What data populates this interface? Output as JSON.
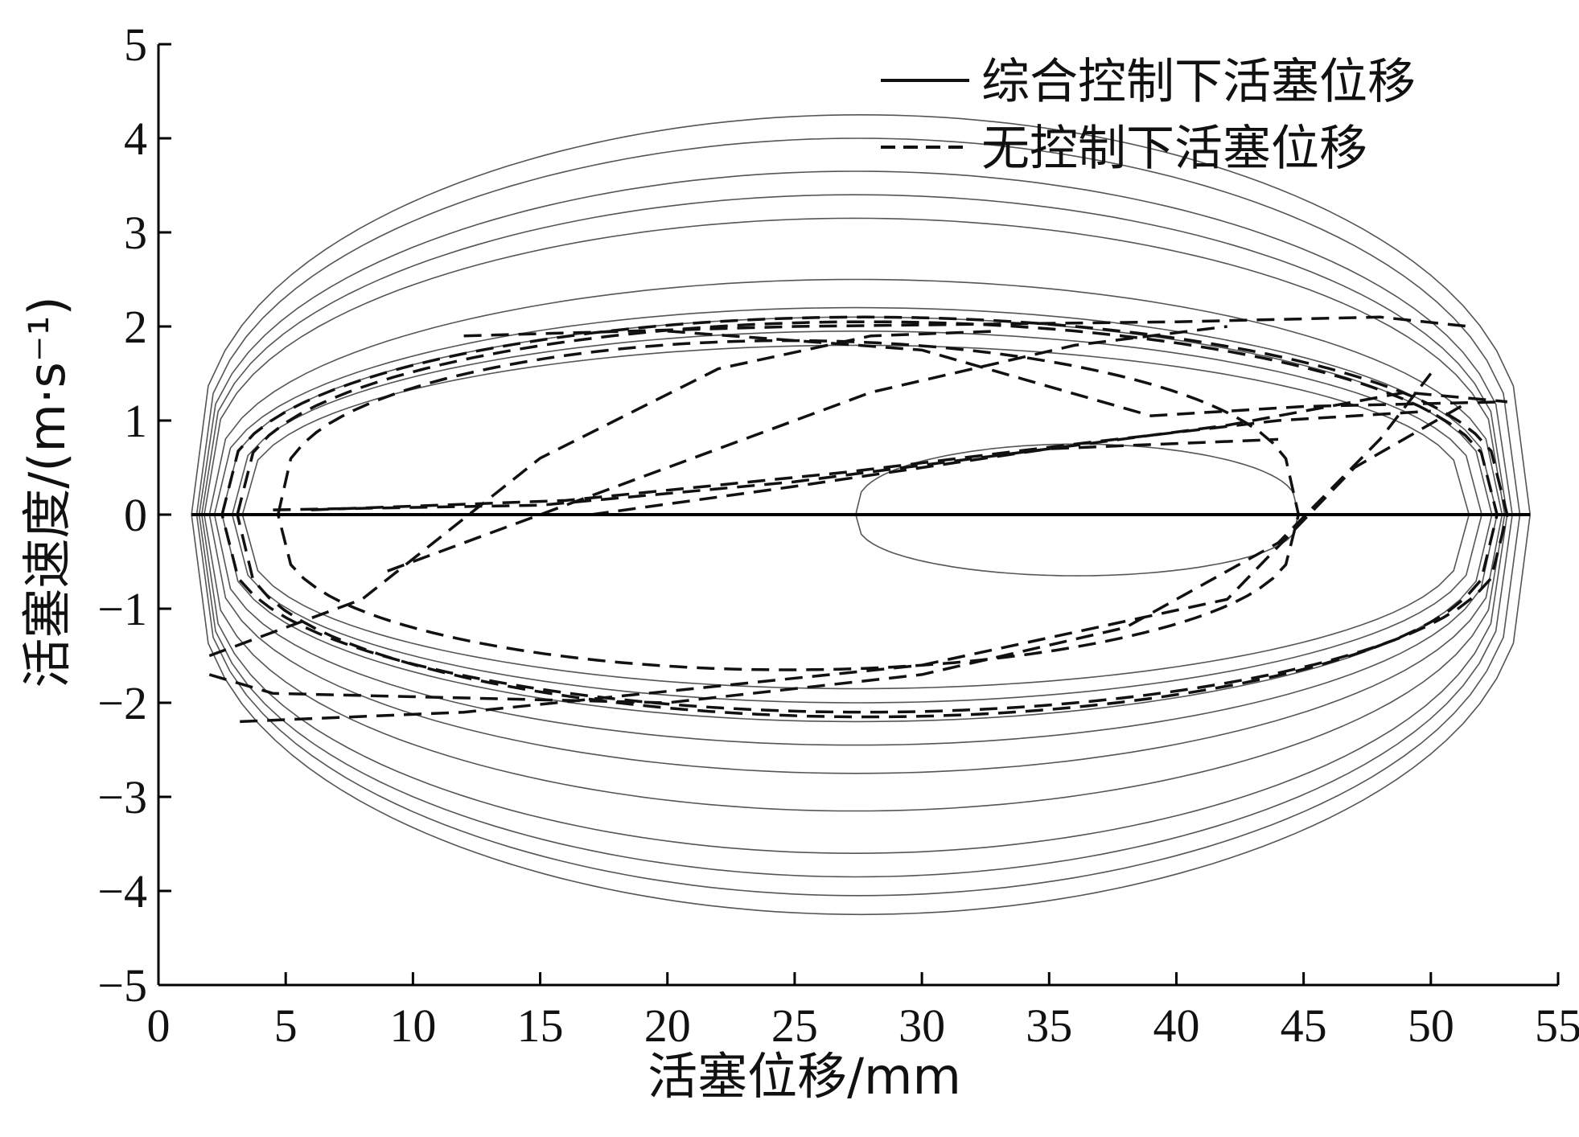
{
  "chart_data": {
    "type": "line",
    "title": "",
    "xlabel": "活塞位移/mm",
    "ylabel": "活塞速度/(m·s⁻¹)",
    "xlim": [
      0,
      55
    ],
    "ylim": [
      -5,
      5
    ],
    "xticks": [
      0,
      5,
      10,
      15,
      20,
      25,
      30,
      35,
      40,
      45,
      50,
      55
    ],
    "yticks": [
      -5,
      -4,
      -3,
      -2,
      -1,
      0,
      1,
      2,
      3,
      4,
      5
    ],
    "xtick_labels": [
      "0",
      "5",
      "10",
      "15",
      "20",
      "25",
      "30",
      "35",
      "40",
      "45",
      "50",
      "55"
    ],
    "ytick_labels": [
      "−5",
      "−4",
      "−3",
      "−2",
      "−1",
      "0",
      "1",
      "2",
      "3",
      "4",
      "5"
    ],
    "grid": false,
    "legend_position": "top-right",
    "series": [
      {
        "name": "综合控制下活塞位移",
        "style": "solid",
        "color": "#555555",
        "loops": [
          {
            "xmin": 1.3,
            "xmax": 53.9,
            "vmax": 4.25,
            "vmin": -4.25
          },
          {
            "xmin": 1.5,
            "xmax": 53.5,
            "vmax": 4.0,
            "vmin": -4.05
          },
          {
            "xmin": 1.6,
            "xmax": 53.2,
            "vmax": 3.65,
            "vmin": -3.85
          },
          {
            "xmin": 1.7,
            "xmax": 53.0,
            "vmax": 3.4,
            "vmin": -3.6
          },
          {
            "xmin": 1.8,
            "xmax": 52.9,
            "vmax": 3.15,
            "vmin": -3.15
          },
          {
            "xmin": 2.0,
            "xmax": 52.8,
            "vmax": 2.5,
            "vmin": -2.75
          },
          {
            "xmin": 2.2,
            "xmax": 52.6,
            "vmax": 2.2,
            "vmin": -2.45
          },
          {
            "xmin": 2.5,
            "xmax": 52.4,
            "vmax": 2.1,
            "vmin": -2.2
          },
          {
            "xmin": 2.9,
            "xmax": 52.0,
            "vmax": 1.95,
            "vmin": -2.0
          },
          {
            "xmin": 3.3,
            "xmax": 51.5,
            "vmax": 1.8,
            "vmin": -1.85
          },
          {
            "xmin": 27.4,
            "xmax": 44.8,
            "vmax": 0.75,
            "vmin": -0.65
          }
        ]
      },
      {
        "name": "无控制下活塞位移",
        "style": "dashed",
        "color": "#111111",
        "loops": [
          {
            "xmin": 4.7,
            "xmax": 44.8,
            "vmax": 1.85,
            "vmin": -1.65
          },
          {
            "xmin": 3.1,
            "xmax": 52.6,
            "vmax": 2.05,
            "vmin": -2.15
          },
          {
            "xmin": 2.5,
            "xmax": 53.0,
            "vmax": 2.1,
            "vmin": -2.1
          }
        ],
        "segments": [
          [
            [
              2.0,
              -1.5
            ],
            [
              8.0,
              -0.9
            ],
            [
              15.0,
              0.6
            ],
            [
              22.0,
              1.55
            ],
            [
              28.0,
              1.9
            ],
            [
              33.0,
              1.95
            ]
          ],
          [
            [
              2.0,
              -1.7
            ],
            [
              4.5,
              -1.9
            ],
            [
              20.0,
              -2.0
            ],
            [
              30.0,
              -1.7
            ],
            [
              38.0,
              -1.2
            ],
            [
              44.0,
              -0.3
            ],
            [
              48.0,
              0.8
            ],
            [
              50.0,
              1.5
            ]
          ],
          [
            [
              3.2,
              -2.2
            ],
            [
              12.0,
              -2.1
            ],
            [
              30.0,
              -1.6
            ],
            [
              42.0,
              -0.9
            ],
            [
              47.0,
              0.5
            ],
            [
              51.5,
              1.2
            ]
          ],
          [
            [
              4.5,
              0.05
            ],
            [
              15.0,
              0.1
            ],
            [
              25.0,
              0.35
            ],
            [
              35.0,
              0.7
            ],
            [
              42.0,
              0.95
            ],
            [
              49.0,
              1.3
            ],
            [
              53.0,
              1.2
            ]
          ],
          [
            [
              6.0,
              0.05
            ],
            [
              16.0,
              0.15
            ],
            [
              27.0,
              0.45
            ],
            [
              36.0,
              0.75
            ],
            [
              44.0,
              1.0
            ],
            [
              50.0,
              1.1
            ]
          ],
          [
            [
              17.0,
              0.0
            ],
            [
              25.0,
              0.3
            ],
            [
              35.0,
              0.7
            ],
            [
              44.0,
              0.8
            ]
          ],
          [
            [
              20.0,
              1.95
            ],
            [
              30.0,
              1.75
            ],
            [
              39.0,
              1.05
            ],
            [
              45.0,
              1.15
            ],
            [
              53.0,
              1.2
            ]
          ],
          [
            [
              12.0,
              1.9
            ],
            [
              25.0,
              2.0
            ],
            [
              40.0,
              2.05
            ],
            [
              48.0,
              2.1
            ],
            [
              51.5,
              2.0
            ]
          ],
          [
            [
              9.0,
              -0.6
            ],
            [
              18.0,
              0.3
            ],
            [
              28.0,
              1.3
            ],
            [
              36.0,
              1.8
            ],
            [
              42.0,
              2.0
            ]
          ]
        ]
      }
    ]
  }
}
